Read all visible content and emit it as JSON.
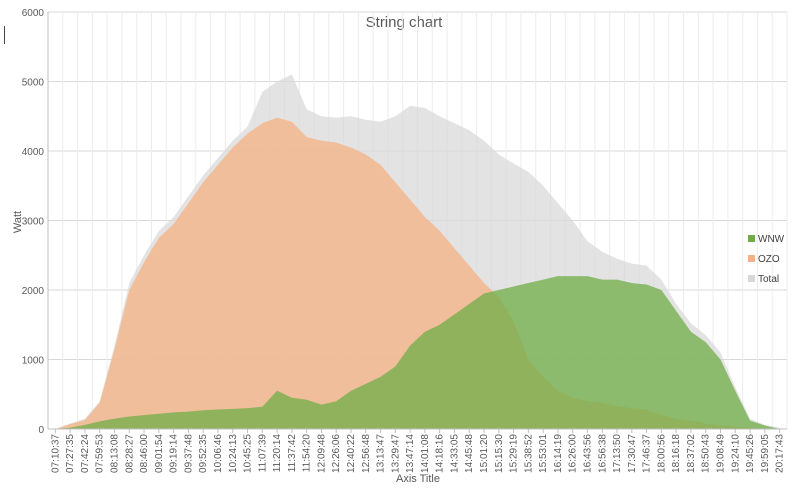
{
  "chart_data": {
    "type": "area",
    "title": "String chart",
    "xlabel": "Axis Title",
    "ylabel": "Watt",
    "ylim": [
      0,
      6000
    ],
    "y_ticks": [
      0,
      1000,
      2000,
      3000,
      4000,
      5000,
      6000
    ],
    "grid": true,
    "legend_position": "right",
    "x_tick_labels": [
      "07:10:37",
      "07:27:35",
      "07:42:24",
      "07:59:53",
      "08:13:08",
      "08:28:27",
      "08:46:00",
      "09:01:54",
      "09:19:14",
      "09:37:48",
      "09:52:35",
      "10:06:46",
      "10:24:13",
      "10:45:25",
      "11:07:39",
      "11:20:14",
      "11:37:42",
      "11:54:20",
      "12:09:48",
      "12:26:06",
      "12:40:22",
      "12:56:48",
      "13:13:47",
      "13:29:47",
      "13:47:14",
      "14:01:08",
      "14:18:16",
      "14:33:05",
      "14:45:48",
      "15:01:20",
      "15:15:30",
      "15:29:19",
      "15:38:52",
      "15:53:01",
      "16:14:19",
      "16:26:00",
      "16:43:56",
      "16:56:38",
      "17:13:50",
      "17:30:47",
      "17:46:37",
      "18:00:56",
      "18:16:18",
      "18:37:02",
      "18:50:43",
      "19:08:49",
      "19:24:10",
      "19:45:26",
      "19:59:05",
      "20:17:43"
    ],
    "series": [
      {
        "name": "Total",
        "color": "#d9d9d9",
        "values": [
          0,
          80,
          150,
          400,
          1200,
          2100,
          2500,
          2850,
          3050,
          3350,
          3650,
          3900,
          4150,
          4350,
          4850,
          5000,
          5100,
          4600,
          4500,
          4480,
          4500,
          4450,
          4420,
          4500,
          4650,
          4620,
          4500,
          4400,
          4300,
          4150,
          3950,
          3820,
          3700,
          3500,
          3250,
          3000,
          2700,
          2550,
          2450,
          2380,
          2350,
          2150,
          1800,
          1520,
          1350,
          1100,
          600,
          150,
          60,
          20
        ]
      },
      {
        "name": "OZO",
        "color": "#f4b183",
        "values": [
          0,
          70,
          130,
          380,
          1150,
          2000,
          2400,
          2750,
          2950,
          3250,
          3550,
          3800,
          4050,
          4250,
          4400,
          4480,
          4420,
          4200,
          4150,
          4120,
          4050,
          3950,
          3800,
          3550,
          3300,
          3050,
          2850,
          2600,
          2350,
          2100,
          1900,
          1550,
          1000,
          750,
          550,
          450,
          400,
          380,
          330,
          300,
          280,
          200,
          150,
          120,
          80,
          50,
          30,
          20,
          10,
          0
        ]
      },
      {
        "name": "WNW",
        "color": "#70ad47",
        "values": [
          0,
          20,
          60,
          110,
          150,
          180,
          200,
          220,
          240,
          250,
          270,
          280,
          290,
          300,
          320,
          550,
          450,
          420,
          350,
          400,
          550,
          650,
          750,
          900,
          1200,
          1400,
          1500,
          1650,
          1800,
          1950,
          2000,
          2050,
          2100,
          2150,
          2200,
          2200,
          2200,
          2150,
          2150,
          2100,
          2080,
          2000,
          1700,
          1400,
          1250,
          1000,
          550,
          120,
          50,
          0
        ]
      }
    ]
  }
}
